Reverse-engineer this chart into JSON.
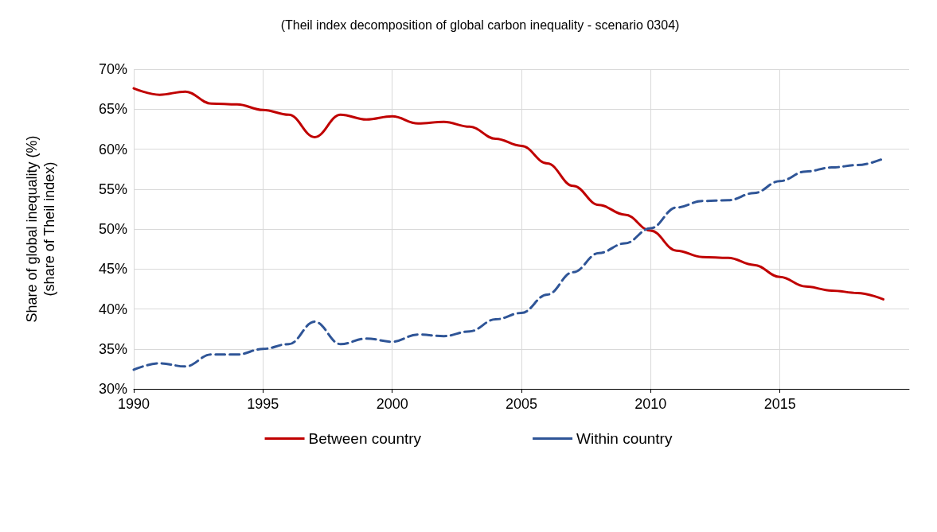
{
  "chart_data": {
    "type": "line",
    "title": "(Theil index decomposition of global carbon inequality - scenario 0304)",
    "ylabel": "Share of global inequality (%)\n(share of Theil index)",
    "x": [
      1990,
      1991,
      1992,
      1993,
      1994,
      1995,
      1996,
      1997,
      1998,
      1999,
      2000,
      2001,
      2002,
      2003,
      2004,
      2005,
      2006,
      2007,
      2008,
      2009,
      2010,
      2011,
      2012,
      2013,
      2014,
      2015,
      2016,
      2017,
      2018,
      2019
    ],
    "series": [
      {
        "name": "Between country",
        "color": "#c00000",
        "line_style": "solid",
        "values": [
          67.6,
          66.8,
          67.2,
          65.7,
          65.6,
          64.9,
          64.3,
          61.5,
          64.3,
          63.7,
          64.1,
          63.2,
          63.4,
          62.8,
          61.3,
          60.4,
          58.2,
          55.4,
          53.0,
          51.8,
          49.8,
          47.3,
          46.5,
          46.4,
          45.5,
          44.0,
          42.8,
          42.3,
          42.0,
          41.2
        ]
      },
      {
        "name": "Within country",
        "color": "#2f5597",
        "line_style": "dashed",
        "values": [
          32.4,
          33.2,
          32.8,
          34.3,
          34.3,
          35.0,
          35.6,
          38.4,
          35.6,
          36.3,
          35.9,
          36.8,
          36.6,
          37.2,
          38.7,
          39.5,
          41.8,
          44.6,
          47.0,
          48.2,
          50.1,
          52.7,
          53.5,
          53.6,
          54.5,
          56.0,
          57.2,
          57.7,
          58.0,
          58.8
        ]
      }
    ],
    "xlim": [
      1990,
      2020
    ],
    "xticks": [
      1990,
      1995,
      2000,
      2005,
      2010,
      2015
    ],
    "ylim": [
      30,
      70
    ],
    "yticks": [
      {
        "value": 30,
        "label": "30%"
      },
      {
        "value": 35,
        "label": "35%"
      },
      {
        "value": 40,
        "label": "40%"
      },
      {
        "value": 45,
        "label": "45%"
      },
      {
        "value": 50,
        "label": "50%"
      },
      {
        "value": 55,
        "label": "55%"
      },
      {
        "value": 60,
        "label": "60%"
      },
      {
        "value": 65,
        "label": "65%"
      },
      {
        "value": 70,
        "label": "70%"
      }
    ],
    "grid": true,
    "legend": "bottom",
    "marker": "none"
  }
}
